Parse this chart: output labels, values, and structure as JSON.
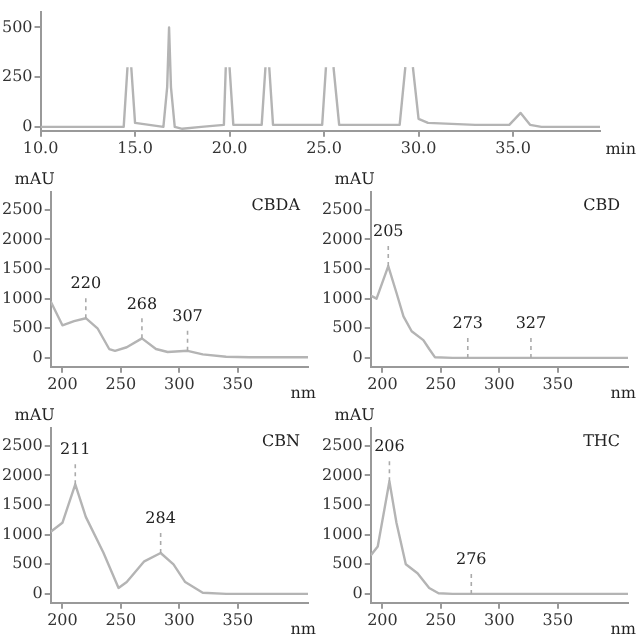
{
  "chart_data": [
    {
      "type": "line",
      "xlabel": "min",
      "color": "#b4b4b4",
      "x": [
        10,
        14.4,
        14.6,
        14.7,
        14.8,
        15.0,
        16.5,
        16.7,
        16.8,
        16.9,
        17.1,
        17.5,
        18.5,
        19.7,
        19.8,
        19.9,
        20.0,
        20.2,
        21.7,
        21.9,
        22.0,
        22.1,
        22.3,
        24.9,
        25.1,
        25.3,
        25.5,
        25.8,
        29.0,
        29.3,
        29.5,
        29.7,
        30.0,
        30.5,
        33,
        34.8,
        35.4,
        35.9,
        36.5,
        39.6
      ],
      "values": [
        0,
        0,
        300,
        null,
        300,
        20,
        0,
        200,
        500,
        200,
        0,
        -10,
        0,
        10,
        300,
        null,
        300,
        10,
        10,
        300,
        null,
        300,
        10,
        10,
        300,
        null,
        300,
        10,
        10,
        300,
        null,
        300,
        40,
        20,
        10,
        10,
        70,
        10,
        0,
        0
      ],
      "xlim": [
        10,
        39.6
      ],
      "ylim": [
        -20,
        580
      ],
      "xticks": [
        {
          "value": 10,
          "label": "10.0"
        },
        {
          "value": 15,
          "label": "15.0"
        },
        {
          "value": 20,
          "label": "20.0"
        },
        {
          "value": 25,
          "label": "25.0"
        },
        {
          "value": 30,
          "label": "30.0"
        },
        {
          "value": 35,
          "label": "35.0"
        }
      ],
      "yticks": [
        0,
        250,
        500
      ],
      "grid": false,
      "legend": false
    },
    {
      "type": "line",
      "title": "CBDA",
      "xlabel": "nm",
      "ylabel": "mAU",
      "color": "#b4b4b4",
      "x": [
        190,
        200,
        210,
        220,
        230,
        240,
        245,
        255,
        268,
        280,
        290,
        307,
        320,
        340,
        360,
        410
      ],
      "values": [
        950,
        550,
        620,
        670,
        500,
        150,
        120,
        180,
        330,
        150,
        100,
        120,
        60,
        20,
        10,
        10
      ],
      "annotations": [
        {
          "text": "220",
          "x": 220,
          "y": 670
        },
        {
          "text": "268",
          "x": 268,
          "y": 330
        },
        {
          "text": "307",
          "x": 307,
          "y": 120
        }
      ],
      "xlim": [
        190,
        410
      ],
      "ylim": [
        -150,
        2800
      ],
      "xticks": [
        200,
        250,
        300,
        350
      ],
      "yticks": [
        0,
        500,
        1000,
        1500,
        2000,
        2500
      ],
      "grid": false,
      "legend": false
    },
    {
      "type": "line",
      "title": "CBD",
      "xlabel": "nm",
      "ylabel": "mAU",
      "color": "#b4b4b4",
      "x": [
        190,
        195,
        205,
        212,
        218,
        225,
        235,
        240,
        245,
        260,
        410
      ],
      "values": [
        1050,
        1000,
        1550,
        1100,
        700,
        450,
        300,
        150,
        10,
        0,
        0
      ],
      "annotations": [
        {
          "text": "205",
          "x": 205,
          "y": 1550
        },
        {
          "text": "273",
          "x": 273,
          "y": 0
        },
        {
          "text": "327",
          "x": 327,
          "y": 0
        }
      ],
      "xlim": [
        190,
        410
      ],
      "ylim": [
        -150,
        2800
      ],
      "xticks": [
        200,
        250,
        300,
        350
      ],
      "yticks": [
        0,
        500,
        1000,
        1500,
        2000,
        2500
      ],
      "grid": false,
      "legend": false
    },
    {
      "type": "line",
      "title": "CBN",
      "xlabel": "nm",
      "ylabel": "mAU",
      "color": "#b4b4b4",
      "x": [
        190,
        200,
        211,
        220,
        235,
        248,
        255,
        270,
        284,
        295,
        305,
        320,
        340,
        410
      ],
      "values": [
        1050,
        1200,
        1850,
        1300,
        700,
        100,
        200,
        550,
        690,
        500,
        200,
        20,
        0,
        0
      ],
      "annotations": [
        {
          "text": "211",
          "x": 211,
          "y": 1850
        },
        {
          "text": "284",
          "x": 284,
          "y": 690
        }
      ],
      "xlim": [
        190,
        410
      ],
      "ylim": [
        -150,
        2800
      ],
      "xticks": [
        200,
        250,
        300,
        350
      ],
      "yticks": [
        0,
        500,
        1000,
        1500,
        2000,
        2500
      ],
      "grid": false,
      "legend": false
    },
    {
      "type": "line",
      "title": "THC",
      "xlabel": "nm",
      "ylabel": "mAU",
      "color": "#b4b4b4",
      "x": [
        190,
        196,
        206,
        212,
        220,
        230,
        240,
        248,
        260,
        410
      ],
      "values": [
        650,
        800,
        1900,
        1200,
        500,
        350,
        100,
        10,
        0,
        0
      ],
      "annotations": [
        {
          "text": "206",
          "x": 206,
          "y": 1900
        },
        {
          "text": "276",
          "x": 276,
          "y": 0
        }
      ],
      "xlim": [
        190,
        410
      ],
      "ylim": [
        -150,
        2800
      ],
      "xticks": [
        200,
        250,
        300,
        350
      ],
      "yticks": [
        0,
        500,
        1000,
        1500,
        2000,
        2500
      ],
      "grid": false,
      "legend": false
    }
  ]
}
